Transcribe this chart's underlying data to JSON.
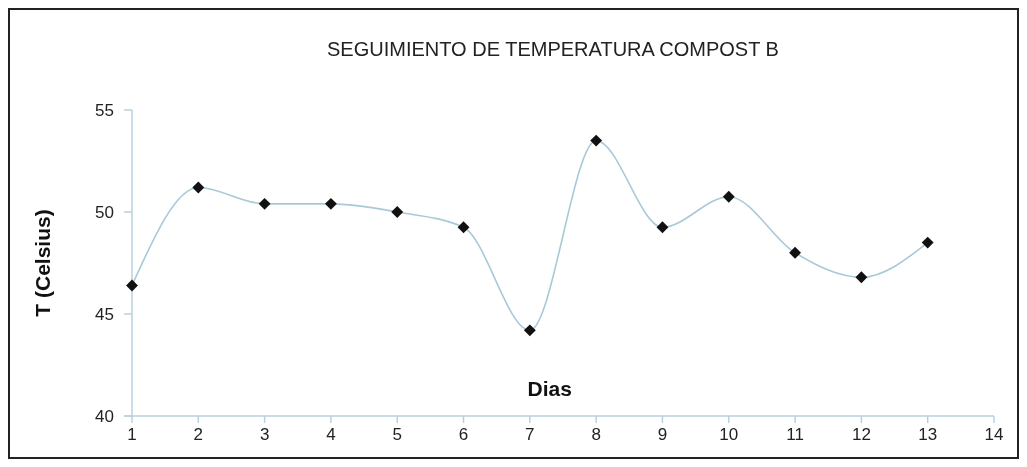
{
  "chart_data": {
    "type": "line",
    "title": "SEGUIMIENTO DE TEMPERATURA COMPOST B",
    "xlabel": "Dias",
    "ylabel": "T (Celsius)",
    "x": [
      1,
      2,
      3,
      4,
      5,
      6,
      7,
      8,
      9,
      10,
      11,
      12,
      13
    ],
    "series": [
      {
        "color": "#a9c9d8",
        "values": [
          46.4,
          51.2,
          50.4,
          50.4,
          50.0,
          49.25,
          44.2,
          53.5,
          49.25,
          50.75,
          48.0,
          46.8,
          48.5
        ]
      }
    ],
    "xlim": [
      1,
      14
    ],
    "xticks": [
      1,
      2,
      3,
      4,
      5,
      6,
      7,
      8,
      9,
      10,
      11,
      12,
      13,
      14
    ],
    "ylim": [
      40,
      55
    ],
    "yticks": [
      40,
      45,
      50,
      55
    ],
    "grid": false,
    "marker": "diamond",
    "line_style": "solid"
  }
}
